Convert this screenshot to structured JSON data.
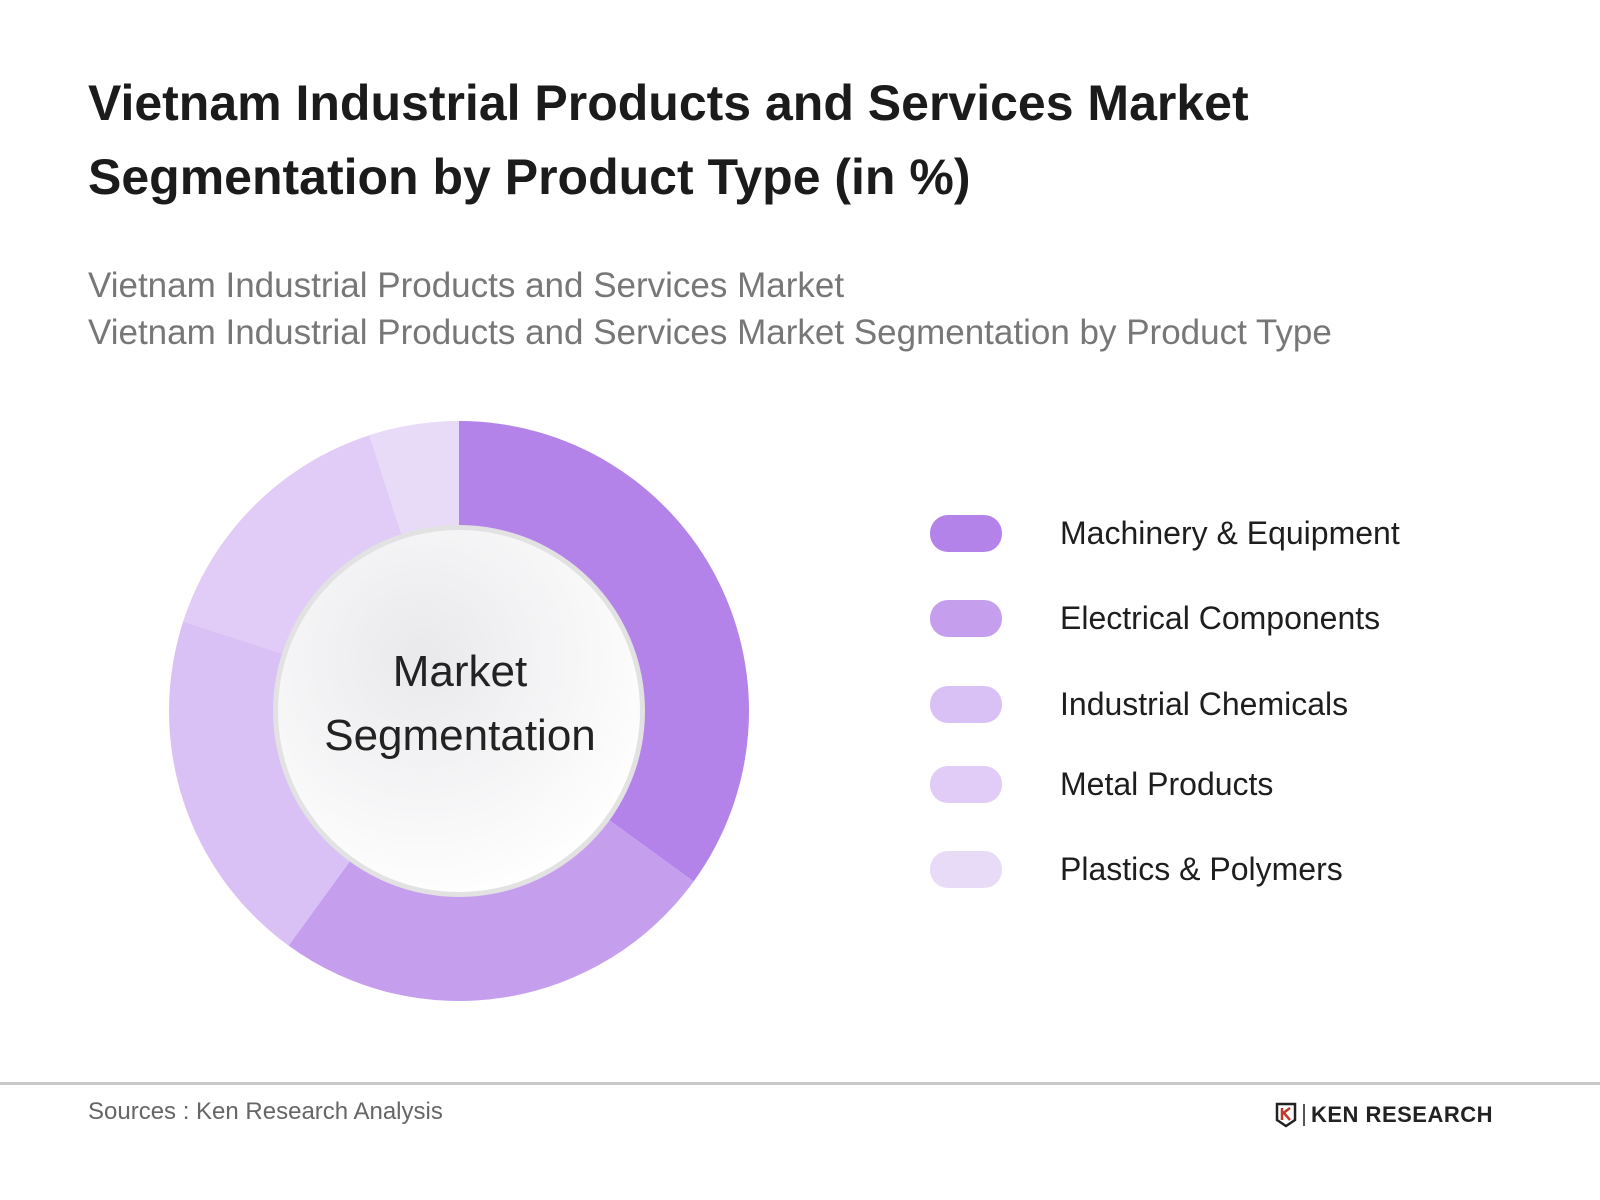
{
  "chart_data": {
    "type": "pie",
    "variant": "donut",
    "title": "Vietnam Industrial Products and Services Market Segmentation by Product Type (in %)",
    "subtitle_lines": [
      "Vietnam Industrial Products and Services Market",
      "Vietnam Industrial Products and Services Market Segmentation by Product Type"
    ],
    "center_label": [
      "Market",
      "Segmentation"
    ],
    "categories": [
      "Machinery & Equipment",
      "Electrical Components",
      "Industrial Chemicals",
      "Metal Products",
      "Plastics & Polymers"
    ],
    "values": [
      35,
      25,
      20,
      15,
      5
    ],
    "colors": [
      "#b383ea",
      "#c59fee",
      "#d9c1f5",
      "#e0ccf6",
      "#e8dbf8"
    ],
    "legend_position": "right"
  },
  "footer": {
    "source": "Sources : Ken Research Analysis",
    "logo": "KEN RESEARCH"
  }
}
